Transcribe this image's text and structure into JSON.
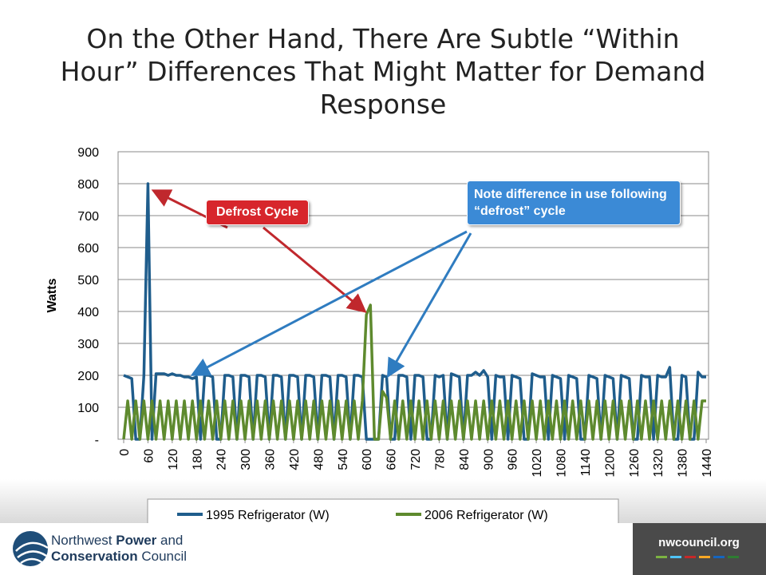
{
  "title": "On the Other Hand, There Are Subtle “Within Hour” Differences That Might Matter for Demand Response",
  "chart_data": {
    "type": "line",
    "y_label": "Watts",
    "x": [
      0,
      10,
      20,
      30,
      40,
      50,
      60,
      70,
      80,
      90,
      100,
      110,
      120,
      130,
      140,
      150,
      160,
      170,
      180,
      190,
      200,
      210,
      220,
      230,
      240,
      250,
      260,
      270,
      280,
      290,
      300,
      310,
      320,
      330,
      340,
      350,
      360,
      370,
      380,
      390,
      400,
      410,
      420,
      430,
      440,
      450,
      460,
      470,
      480,
      490,
      500,
      510,
      520,
      530,
      540,
      550,
      560,
      570,
      580,
      590,
      600,
      610,
      620,
      630,
      640,
      650,
      660,
      670,
      680,
      690,
      700,
      710,
      720,
      730,
      740,
      750,
      760,
      770,
      780,
      790,
      800,
      810,
      820,
      830,
      840,
      850,
      860,
      870,
      880,
      890,
      900,
      910,
      920,
      930,
      940,
      950,
      960,
      970,
      980,
      990,
      1000,
      1010,
      1020,
      1030,
      1040,
      1050,
      1060,
      1070,
      1080,
      1090,
      1100,
      1110,
      1120,
      1130,
      1140,
      1150,
      1160,
      1170,
      1180,
      1190,
      1200,
      1210,
      1220,
      1230,
      1240,
      1250,
      1260,
      1270,
      1280,
      1290,
      1300,
      1310,
      1320,
      1330,
      1340,
      1350,
      1360,
      1370,
      1380,
      1390,
      1400,
      1410,
      1420,
      1430,
      1440
    ],
    "series": [
      {
        "name": "1995 Refrigerator (W)",
        "color": "#1f5d8c",
        "values": [
          200,
          195,
          190,
          0,
          0,
          200,
          800,
          0,
          205,
          205,
          205,
          200,
          205,
          200,
          200,
          195,
          195,
          190,
          195,
          0,
          200,
          200,
          195,
          0,
          0,
          200,
          200,
          195,
          0,
          200,
          200,
          195,
          0,
          200,
          200,
          195,
          0,
          200,
          200,
          195,
          0,
          200,
          200,
          195,
          0,
          200,
          200,
          195,
          0,
          200,
          200,
          195,
          0,
          200,
          200,
          195,
          0,
          200,
          200,
          195,
          0,
          0,
          0,
          0,
          200,
          195,
          0,
          0,
          200,
          200,
          195,
          0,
          200,
          200,
          195,
          0,
          0,
          200,
          195,
          200,
          0,
          205,
          200,
          195,
          0,
          200,
          200,
          210,
          200,
          215,
          195,
          0,
          200,
          195,
          195,
          0,
          200,
          195,
          190,
          0,
          0,
          205,
          200,
          195,
          195,
          0,
          200,
          195,
          190,
          0,
          200,
          195,
          190,
          0,
          0,
          200,
          195,
          190,
          0,
          200,
          195,
          190,
          0,
          200,
          195,
          190,
          0,
          0,
          200,
          195,
          195,
          0,
          200,
          195,
          195,
          225,
          0,
          0,
          200,
          195,
          0,
          0,
          210,
          195,
          195
        ]
      },
      {
        "name": "2006 Refrigerator (W)",
        "color": "#5e8a2e",
        "values": [
          0,
          120,
          0,
          120,
          0,
          120,
          0,
          120,
          0,
          120,
          0,
          120,
          0,
          120,
          0,
          120,
          0,
          120,
          0,
          120,
          0,
          120,
          0,
          120,
          0,
          120,
          0,
          120,
          0,
          120,
          0,
          120,
          0,
          120,
          0,
          120,
          0,
          120,
          0,
          120,
          0,
          120,
          0,
          120,
          0,
          120,
          0,
          120,
          0,
          120,
          0,
          120,
          0,
          120,
          0,
          120,
          0,
          120,
          0,
          120,
          390,
          420,
          0,
          0,
          150,
          130,
          0,
          120,
          0,
          120,
          0,
          120,
          0,
          120,
          0,
          120,
          0,
          120,
          0,
          120,
          0,
          120,
          0,
          120,
          0,
          120,
          0,
          120,
          0,
          120,
          0,
          120,
          0,
          120,
          0,
          120,
          0,
          120,
          0,
          120,
          0,
          120,
          0,
          120,
          0,
          120,
          0,
          120,
          0,
          120,
          0,
          120,
          0,
          120,
          0,
          120,
          0,
          120,
          0,
          120,
          0,
          120,
          0,
          120,
          0,
          120,
          0,
          120,
          0,
          120,
          0,
          120,
          0,
          120,
          0,
          120,
          0,
          120,
          0,
          120,
          0,
          120,
          0,
          120,
          120
        ]
      }
    ],
    "xlim": [
      0,
      1440
    ],
    "xticks": [
      0,
      60,
      120,
      180,
      240,
      300,
      360,
      420,
      480,
      540,
      600,
      660,
      720,
      780,
      840,
      900,
      960,
      1020,
      1080,
      1140,
      1200,
      1260,
      1320,
      1380,
      1440
    ],
    "ylim": [
      0,
      900
    ],
    "yticks": [
      {
        "value": 0,
        "label": "-"
      },
      100,
      200,
      300,
      400,
      500,
      600,
      700,
      800,
      900
    ],
    "grid": true,
    "legend": "bottom",
    "annotations": [
      "Defrost Cycle",
      "Note difference in use following “defrost” cycle"
    ]
  },
  "footer": {
    "org_line1_a": "Northwest ",
    "org_line1_b": "Power",
    "org_line1_c": " and",
    "org_line2_a": "Conservation",
    "org_line2_b": " Council",
    "url": "nwcouncil.org"
  }
}
